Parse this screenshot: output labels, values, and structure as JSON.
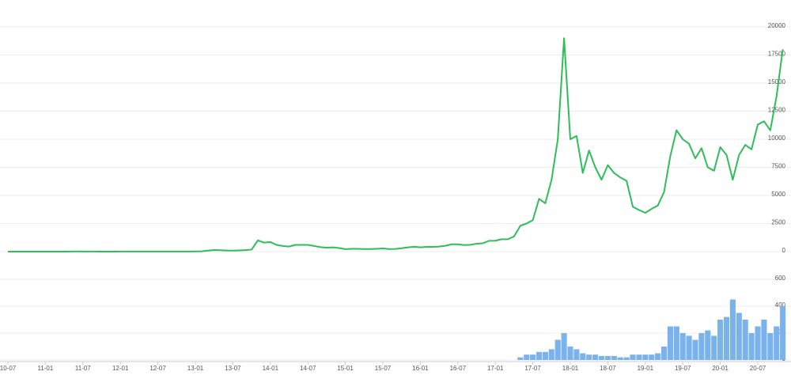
{
  "chart_data": {
    "type": "line",
    "categories": [
      "10-07",
      null,
      null,
      null,
      null,
      null,
      "11-01",
      null,
      null,
      null,
      null,
      null,
      "11-07",
      null,
      null,
      null,
      null,
      null,
      "12-01",
      null,
      null,
      null,
      null,
      null,
      "12-07",
      null,
      null,
      null,
      null,
      null,
      "13-01",
      null,
      null,
      null,
      null,
      null,
      "13-07",
      null,
      null,
      null,
      null,
      null,
      "14-01",
      null,
      null,
      null,
      null,
      null,
      "14-07",
      null,
      null,
      null,
      null,
      null,
      "15-01",
      null,
      null,
      null,
      null,
      null,
      "15-07",
      null,
      null,
      null,
      null,
      null,
      "16-01",
      null,
      null,
      null,
      null,
      null,
      "16-07",
      null,
      null,
      null,
      null,
      null,
      "17-01",
      null,
      null,
      null,
      null,
      null,
      "17-07",
      null,
      null,
      null,
      null,
      null,
      "18-01",
      null,
      null,
      null,
      null,
      null,
      "18-07",
      null,
      null,
      null,
      null,
      null,
      "19-01",
      null,
      null,
      null,
      null,
      null,
      "19-07",
      null,
      null,
      null,
      null,
      null,
      "20-01",
      null,
      null,
      null,
      null,
      null,
      "20-07",
      null,
      null,
      null,
      null
    ],
    "series": [
      {
        "type": "line",
        "color": "#2fbd5a",
        "values": [
          0.07,
          0.07,
          0.06,
          0.2,
          0.25,
          0.3,
          0.5,
          0.9,
          0.8,
          1,
          6,
          15,
          13,
          10,
          5,
          3,
          3,
          4,
          6,
          5,
          5,
          5,
          5,
          6,
          8,
          10,
          12,
          11,
          12,
          13,
          17,
          30,
          90,
          140,
          120,
          100,
          90,
          110,
          130,
          180,
          1000,
          800,
          850,
          600,
          500,
          450,
          600,
          600,
          600,
          500,
          400,
          350,
          380,
          320,
          220,
          250,
          250,
          230,
          230,
          250,
          280,
          230,
          240,
          300,
          380,
          430,
          380,
          420,
          420,
          450,
          520,
          650,
          650,
          580,
          610,
          700,
          740,
          960,
          970,
          1100,
          1100,
          1350,
          2300,
          2500,
          2800,
          4700,
          4300,
          6400,
          10000,
          19000,
          10000,
          10300,
          7000,
          9000,
          7500,
          6400,
          7700,
          7000,
          6600,
          6300,
          4000,
          3700,
          3450,
          3800,
          4100,
          5300,
          8500,
          10800,
          10000,
          9600,
          8300,
          9200,
          7500,
          7200,
          9300,
          8600,
          6400,
          8600,
          9500,
          9100,
          11300,
          11600,
          10800,
          13800,
          18000
        ]
      },
      {
        "type": "bar",
        "axis": "y2",
        "color": "#7ab2ec",
        "values": [
          0,
          0,
          0,
          0,
          0,
          0,
          0,
          0,
          0,
          0,
          0,
          0,
          0,
          0,
          0,
          0,
          0,
          0,
          0,
          0,
          0,
          0,
          0,
          0,
          0,
          0,
          0,
          0,
          0,
          0,
          0,
          0,
          0,
          0,
          0,
          0,
          0,
          0,
          0,
          0,
          0,
          0,
          0,
          0,
          0,
          0,
          0,
          0,
          0,
          0,
          0,
          0,
          0,
          0,
          0,
          0,
          0,
          0,
          0,
          0,
          0,
          0,
          0,
          0,
          0,
          0,
          0,
          0,
          0,
          0,
          0,
          0,
          0,
          0,
          0,
          0,
          0,
          0,
          0,
          0,
          0,
          0,
          20,
          40,
          40,
          60,
          60,
          80,
          150,
          200,
          100,
          80,
          50,
          40,
          40,
          30,
          30,
          30,
          20,
          20,
          40,
          40,
          40,
          40,
          50,
          100,
          250,
          250,
          200,
          180,
          150,
          200,
          220,
          180,
          300,
          320,
          450,
          350,
          300,
          200,
          250,
          300,
          200,
          250,
          400
        ]
      }
    ],
    "ylim": [
      0,
      20000
    ],
    "yticks": [
      0,
      2500,
      5000,
      7500,
      10000,
      12500,
      15000,
      17500,
      20000
    ],
    "y2lim": [
      0,
      800
    ],
    "y2ticks": [
      0,
      200,
      400,
      600
    ],
    "grid": true
  }
}
